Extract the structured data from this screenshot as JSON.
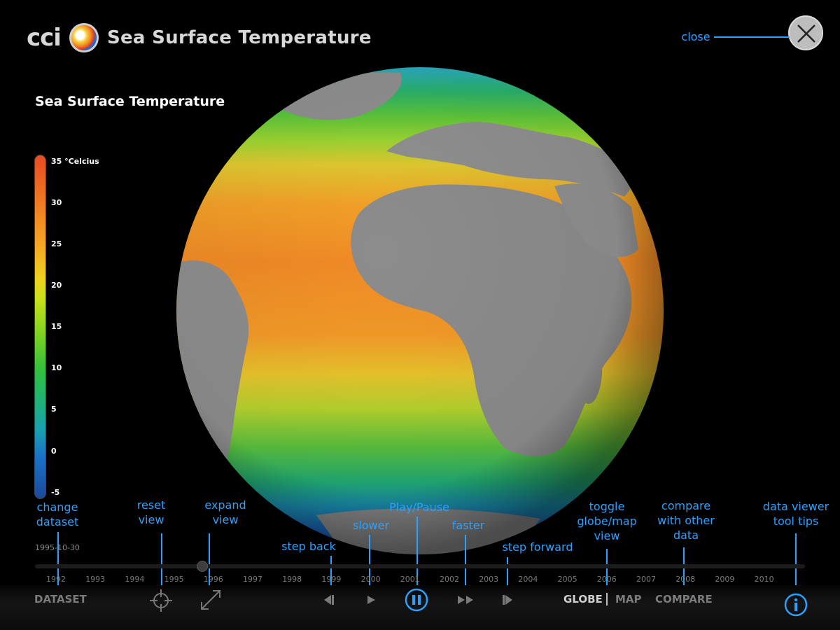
{
  "header": {
    "logo_text": "cci",
    "app_title": "Sea Surface Temperature"
  },
  "dataset_title": "Sea Surface Temperature",
  "legend": {
    "labels": [
      "35 °Celcius",
      "30",
      "25",
      "20",
      "15",
      "10",
      "5",
      "0",
      "-5"
    ]
  },
  "annotations": {
    "close": "close",
    "change_dataset": [
      "change",
      "dataset"
    ],
    "reset_view": [
      "reset",
      "view"
    ],
    "expand_view": [
      "expand",
      "view"
    ],
    "play_pause": "Play/Pause",
    "slower": "slower",
    "step_back": "step back",
    "faster": "faster",
    "step_forward": "step forward",
    "toggle_view": [
      "toggle",
      "globe/map",
      "view"
    ],
    "compare": [
      "compare",
      "with other",
      "data"
    ],
    "tool_tips": [
      "data viewer",
      "tool tips"
    ]
  },
  "timeline": {
    "current_date": "1995-10-30",
    "years": [
      "1992",
      "1993",
      "1994",
      "1995",
      "1996",
      "1997",
      "1998",
      "1999",
      "2000",
      "2001",
      "2002",
      "2003",
      "2004",
      "2005",
      "2006",
      "2007",
      "2008",
      "2009",
      "2010"
    ]
  },
  "toolbar": {
    "dataset": "DATASET",
    "globe": "GLOBE",
    "map": "MAP",
    "compare": "COMPARE"
  },
  "icons": {
    "close": "close-x-icon",
    "logo": "cci-globe-logo-icon",
    "reset_view": "crosshair-icon",
    "expand_view": "expand-arrows-icon",
    "step_back": "step-back-icon",
    "slower": "play-icon",
    "play_pause": "pause-icon",
    "faster": "fast-forward-icon",
    "step_forward": "step-forward-icon",
    "info": "info-icon"
  },
  "colors": {
    "accent": "#2aa1ff",
    "background": "#000000"
  }
}
